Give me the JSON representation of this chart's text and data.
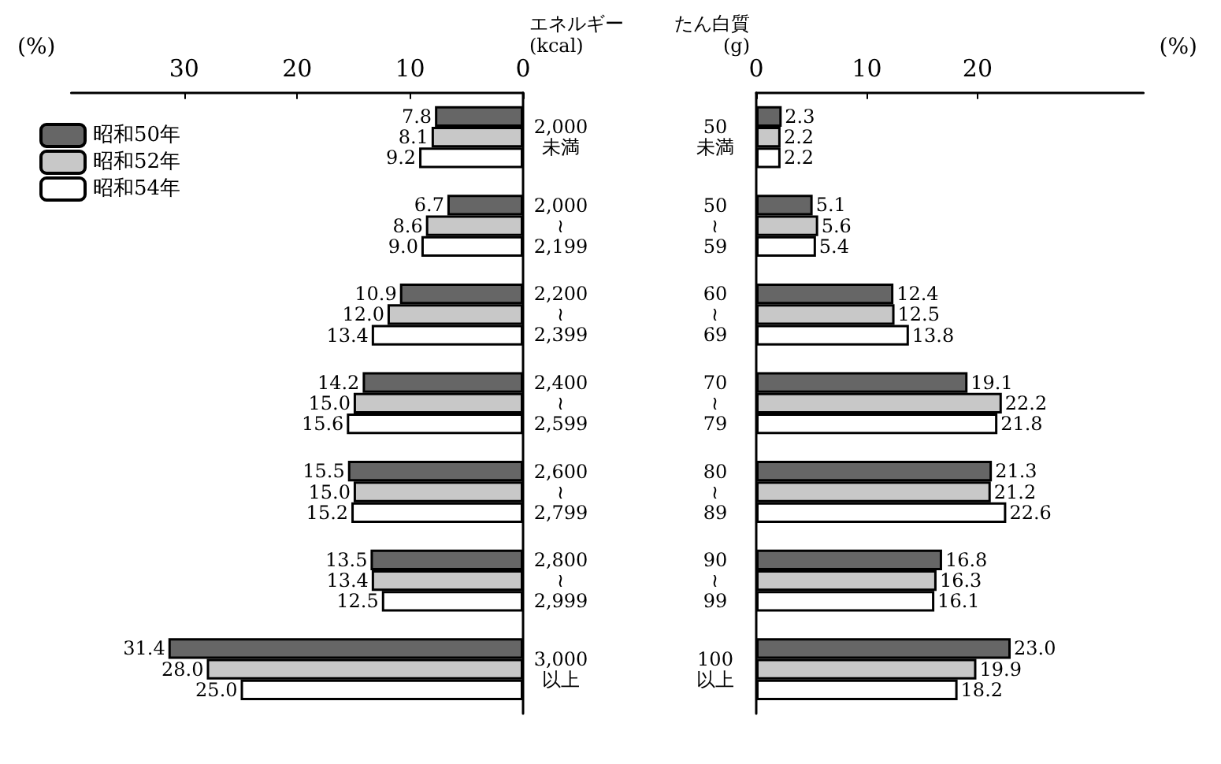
{
  "chart_data": [
    {
      "type": "bar",
      "orientation": "horizontal",
      "xlabel": "(%)",
      "ylabel": "エネルギー\n(kcal)",
      "categories": [
        "2,000\n未満",
        "2,000\n≀\n2,199",
        "2,200\n≀\n2,399",
        "2,400\n≀\n2,599",
        "2,600\n≀\n2,799",
        "2,800\n≀\n2,999",
        "3,000\n以上"
      ],
      "series": [
        {
          "name": "昭和50年",
          "color": "#666666",
          "values": [
            7.8,
            6.7,
            10.9,
            14.2,
            15.5,
            13.5,
            31.4
          ],
          "value_labels": [
            "7.8",
            "6.7",
            "10.9",
            "14.2",
            "15.5",
            "13.5",
            "31.4"
          ]
        },
        {
          "name": "昭和52年",
          "color": "#c8c8c8",
          "values": [
            8.1,
            8.6,
            12.0,
            15.0,
            15.0,
            13.4,
            28.0
          ],
          "value_labels": [
            "8.1",
            "8.6",
            "12.0",
            "15.0",
            "15.0",
            "13.4",
            "28.0"
          ]
        },
        {
          "name": "昭和54年",
          "color": "#ffffff",
          "values": [
            9.2,
            9.0,
            13.4,
            15.6,
            15.2,
            12.5,
            25.0
          ],
          "value_labels": [
            "9.2",
            "9.0",
            "13.4",
            "15.6",
            "15.2",
            "12.5",
            "25.0"
          ]
        }
      ],
      "xlim": [
        40,
        0
      ],
      "xticks": [
        30,
        20,
        10,
        0
      ],
      "legend": "top left",
      "grid": false
    },
    {
      "type": "bar",
      "orientation": "horizontal",
      "xlabel": "(%)",
      "ylabel": "たん白質\n(g)",
      "categories": [
        "50\n未満",
        "50\n≀\n59",
        "60\n≀\n69",
        "70\n≀\n79",
        "80\n≀\n89",
        "90\n≀\n99",
        "100\n以上"
      ],
      "series": [
        {
          "color": "#666666",
          "values": [
            2.3,
            5.1,
            12.4,
            19.1,
            21.3,
            16.8,
            23.0
          ],
          "value_labels": [
            "2.3",
            "5.1",
            "12.4",
            "19.1",
            "21.3",
            "16.8",
            "23.0"
          ]
        },
        {
          "color": "#c8c8c8",
          "values": [
            2.2,
            5.6,
            12.5,
            22.2,
            21.2,
            16.3,
            19.9
          ],
          "value_labels": [
            "2.2",
            "5.6",
            "12.5",
            "22.2",
            "21.2",
            "16.3",
            "19.9"
          ]
        },
        {
          "color": "#ffffff",
          "values": [
            2.2,
            5.4,
            13.8,
            21.8,
            22.6,
            16.1,
            18.2
          ],
          "value_labels": [
            "2.2",
            "5.4",
            "13.8",
            "21.8",
            "22.6",
            "16.1",
            "18.2"
          ]
        }
      ],
      "xlim": [
        0,
        35
      ],
      "xticks": [
        0,
        10,
        20
      ],
      "legend": false,
      "grid": false
    }
  ]
}
